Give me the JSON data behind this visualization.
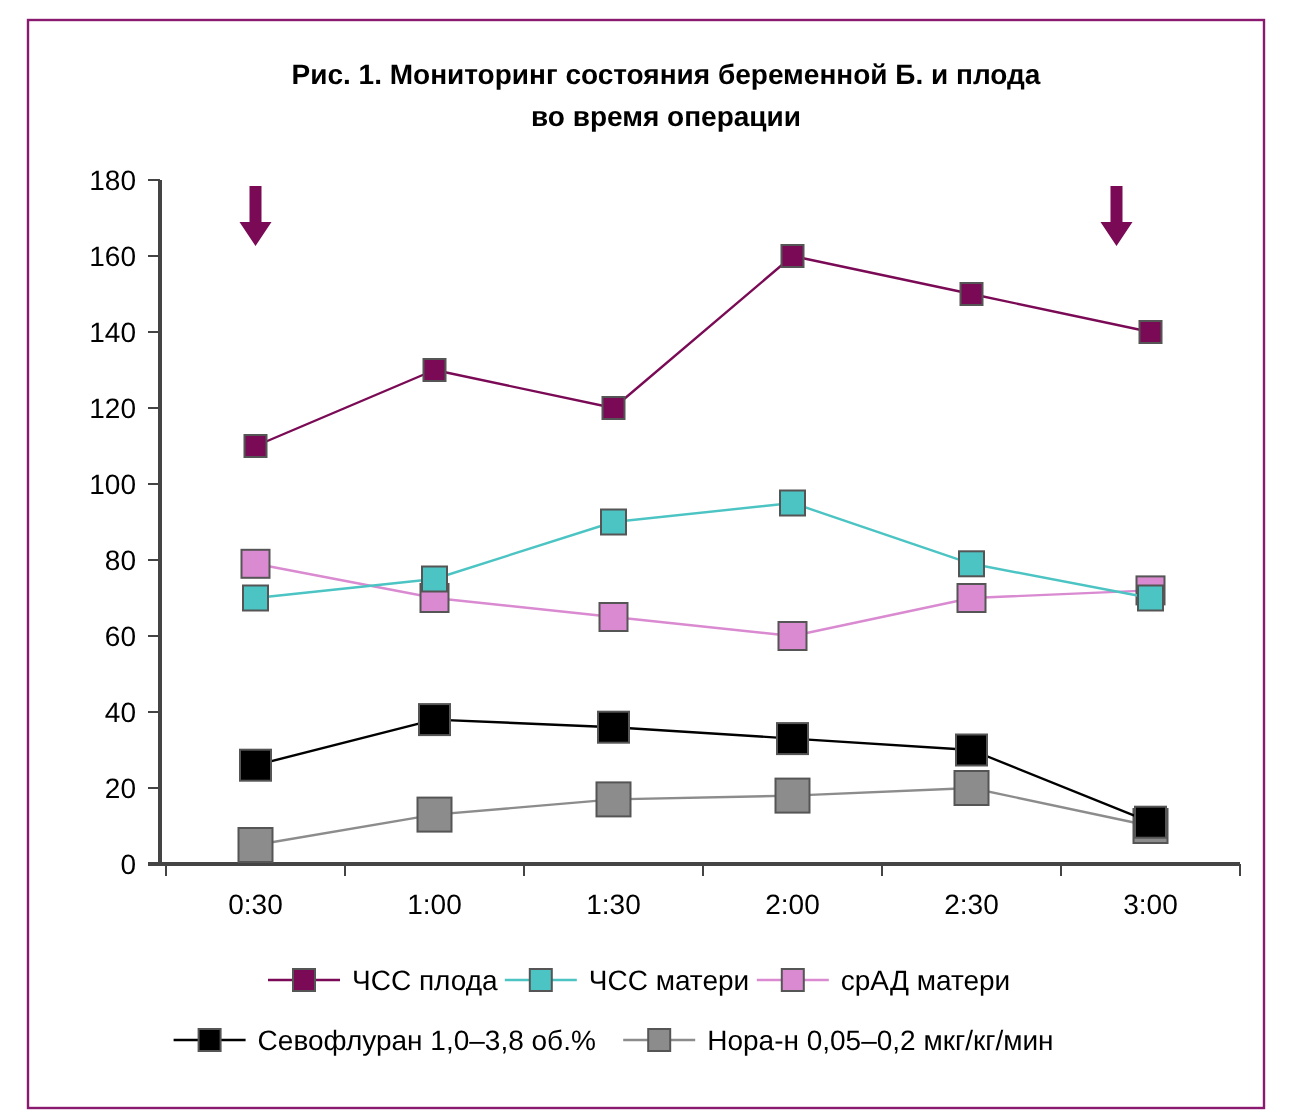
{
  "chart_data": {
    "type": "line",
    "title": "Рис. 1. Мониторинг состояния беременной Б. и плода\nво время операции",
    "categories": [
      "0:30",
      "1:00",
      "1:30",
      "2:00",
      "2:30",
      "3:00"
    ],
    "series": [
      {
        "name": "ЧСС плода",
        "color": "#7a0a55",
        "values": [
          110,
          130,
          120,
          160,
          150,
          140
        ]
      },
      {
        "name": "ЧСС матери",
        "color": "#4cc4c4",
        "values": [
          70,
          75,
          90,
          95,
          79,
          70
        ]
      },
      {
        "name": "срАД матери",
        "color": "#d98ad0",
        "values": [
          79,
          70,
          65,
          60,
          70,
          72
        ]
      },
      {
        "name": "Севофлуран 1,0–3,8 об.%",
        "color": "#000000",
        "values": [
          26,
          38,
          36,
          33,
          30,
          11
        ]
      },
      {
        "name": "Нора-н 0,05–0,2 мкг/кг/мин",
        "color": "#8c8c8c",
        "values": [
          5,
          13,
          17,
          18,
          20,
          10
        ]
      }
    ],
    "ylim": [
      0,
      180
    ],
    "yticks": [
      0,
      20,
      40,
      60,
      80,
      100,
      120,
      140,
      160,
      180
    ],
    "grid": false,
    "legend": "bottom",
    "marker": "square",
    "line_style": "solid"
  }
}
